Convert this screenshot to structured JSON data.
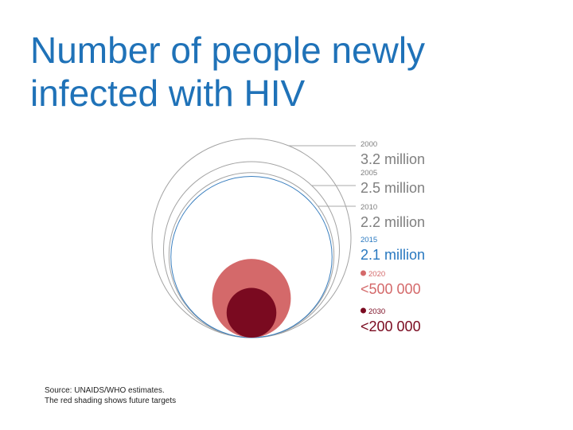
{
  "title": {
    "line1": "Number of people newly",
    "line2": "infected with HIV"
  },
  "source": {
    "line1": "Source: UNAIDS/WHO estimates.",
    "line2": "The red shading shows future targets"
  },
  "chart_data": {
    "type": "proportional-circles",
    "title": "Number of people newly infected with HIV",
    "series": [
      {
        "year": "2000",
        "label": "3.2 million",
        "value": 3200000,
        "kind": "estimate",
        "color": "#a3a3a3",
        "label_color": "#7f7f7f"
      },
      {
        "year": "2005",
        "label": "2.5 million",
        "value": 2500000,
        "kind": "estimate",
        "color": "#a3a3a3",
        "label_color": "#7f7f7f"
      },
      {
        "year": "2010",
        "label": "2.2 million",
        "value": 2200000,
        "kind": "estimate",
        "color": "#a3a3a3",
        "label_color": "#7f7f7f"
      },
      {
        "year": "2015",
        "label": "2.1 million",
        "value": 2100000,
        "kind": "estimate",
        "color": "#3a7fbf",
        "label_color": "#2878c0"
      },
      {
        "year": "2020",
        "label": "<500 000",
        "value": 500000,
        "kind": "target",
        "color": "#d4696a",
        "label_color": "#d4696a"
      },
      {
        "year": "2030",
        "label": "<200 000",
        "value": 200000,
        "kind": "target",
        "color": "#7a0a20",
        "label_color": "#7a0a20"
      }
    ]
  }
}
